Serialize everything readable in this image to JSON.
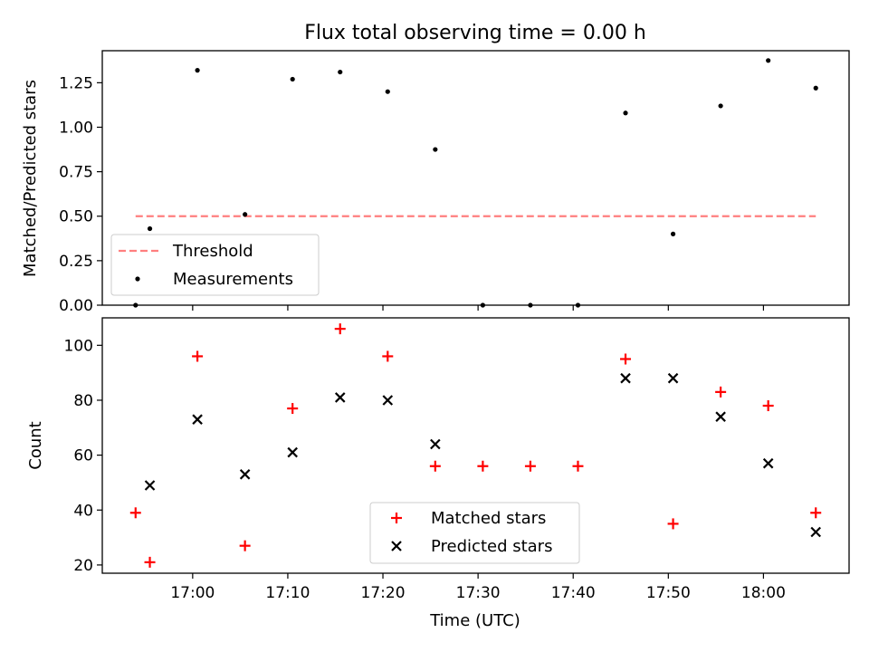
{
  "chart_data": [
    {
      "type": "scatter",
      "title": "Flux total observing time = 0.00 h",
      "ylabel": "Matched/Predicted stars",
      "xlabel": "",
      "ylim": [
        0,
        1.43
      ],
      "yticks": [
        0.0,
        0.25,
        0.5,
        0.75,
        1.0,
        1.25
      ],
      "ytick_labels": [
        "0.00",
        "0.25",
        "0.50",
        "0.75",
        "1.00",
        "1.25"
      ],
      "legend_position": "lower-left",
      "series": [
        {
          "name": "Threshold",
          "kind": "dashed-line",
          "color": "#ff7f7f",
          "x": [
            "16:54:00",
            "18:05:30"
          ],
          "y": [
            0.5,
            0.5
          ]
        },
        {
          "name": "Measurements",
          "kind": "points",
          "color": "#000000",
          "x": [
            "16:54:00",
            "16:55:30",
            "17:00:30",
            "17:05:30",
            "17:10:30",
            "17:15:30",
            "17:20:30",
            "17:25:30",
            "17:30:30",
            "17:35:30",
            "17:40:30",
            "17:45:30",
            "17:50:30",
            "17:55:30",
            "18:00:30",
            "18:05:30"
          ],
          "y": [
            0.0,
            0.43,
            1.32,
            0.51,
            1.27,
            1.31,
            1.2,
            0.875,
            0.0,
            0.0,
            0.0,
            1.08,
            0.4,
            1.12,
            1.375,
            1.22
          ]
        }
      ]
    },
    {
      "type": "scatter",
      "title": "",
      "ylabel": "Count",
      "xlabel": "Time (UTC)",
      "ylim": [
        17,
        110
      ],
      "yticks": [
        20,
        40,
        60,
        80,
        100
      ],
      "ytick_labels": [
        "20",
        "40",
        "60",
        "80",
        "100"
      ],
      "legend_position": "lower-center",
      "series": [
        {
          "name": "Matched stars",
          "marker": "plus",
          "color": "#ff0000",
          "x": [
            "16:54:00",
            "16:55:30",
            "17:00:30",
            "17:05:30",
            "17:10:30",
            "17:15:30",
            "17:20:30",
            "17:25:30",
            "17:30:30",
            "17:35:30",
            "17:40:30",
            "17:45:30",
            "17:50:30",
            "17:55:30",
            "18:00:30",
            "18:05:30"
          ],
          "y": [
            39,
            21,
            96,
            27,
            77,
            106,
            96,
            56,
            56,
            56,
            56,
            95,
            35,
            83,
            78,
            39
          ]
        },
        {
          "name": "Predicted stars",
          "marker": "x",
          "color": "#000000",
          "x": [
            "16:55:30",
            "17:00:30",
            "17:05:30",
            "17:10:30",
            "17:15:30",
            "17:20:30",
            "17:25:30",
            "17:45:30",
            "17:50:30",
            "17:55:30",
            "18:00:30",
            "18:05:30"
          ],
          "y": [
            49,
            73,
            53,
            61,
            81,
            80,
            64,
            88,
            88,
            74,
            57,
            32
          ]
        }
      ]
    }
  ],
  "shared_x": {
    "xlim": [
      "16:50:30",
      "18:09:00"
    ],
    "ticks": [
      "17:00",
      "17:10",
      "17:20",
      "17:30",
      "17:40",
      "17:50",
      "18:00"
    ]
  }
}
